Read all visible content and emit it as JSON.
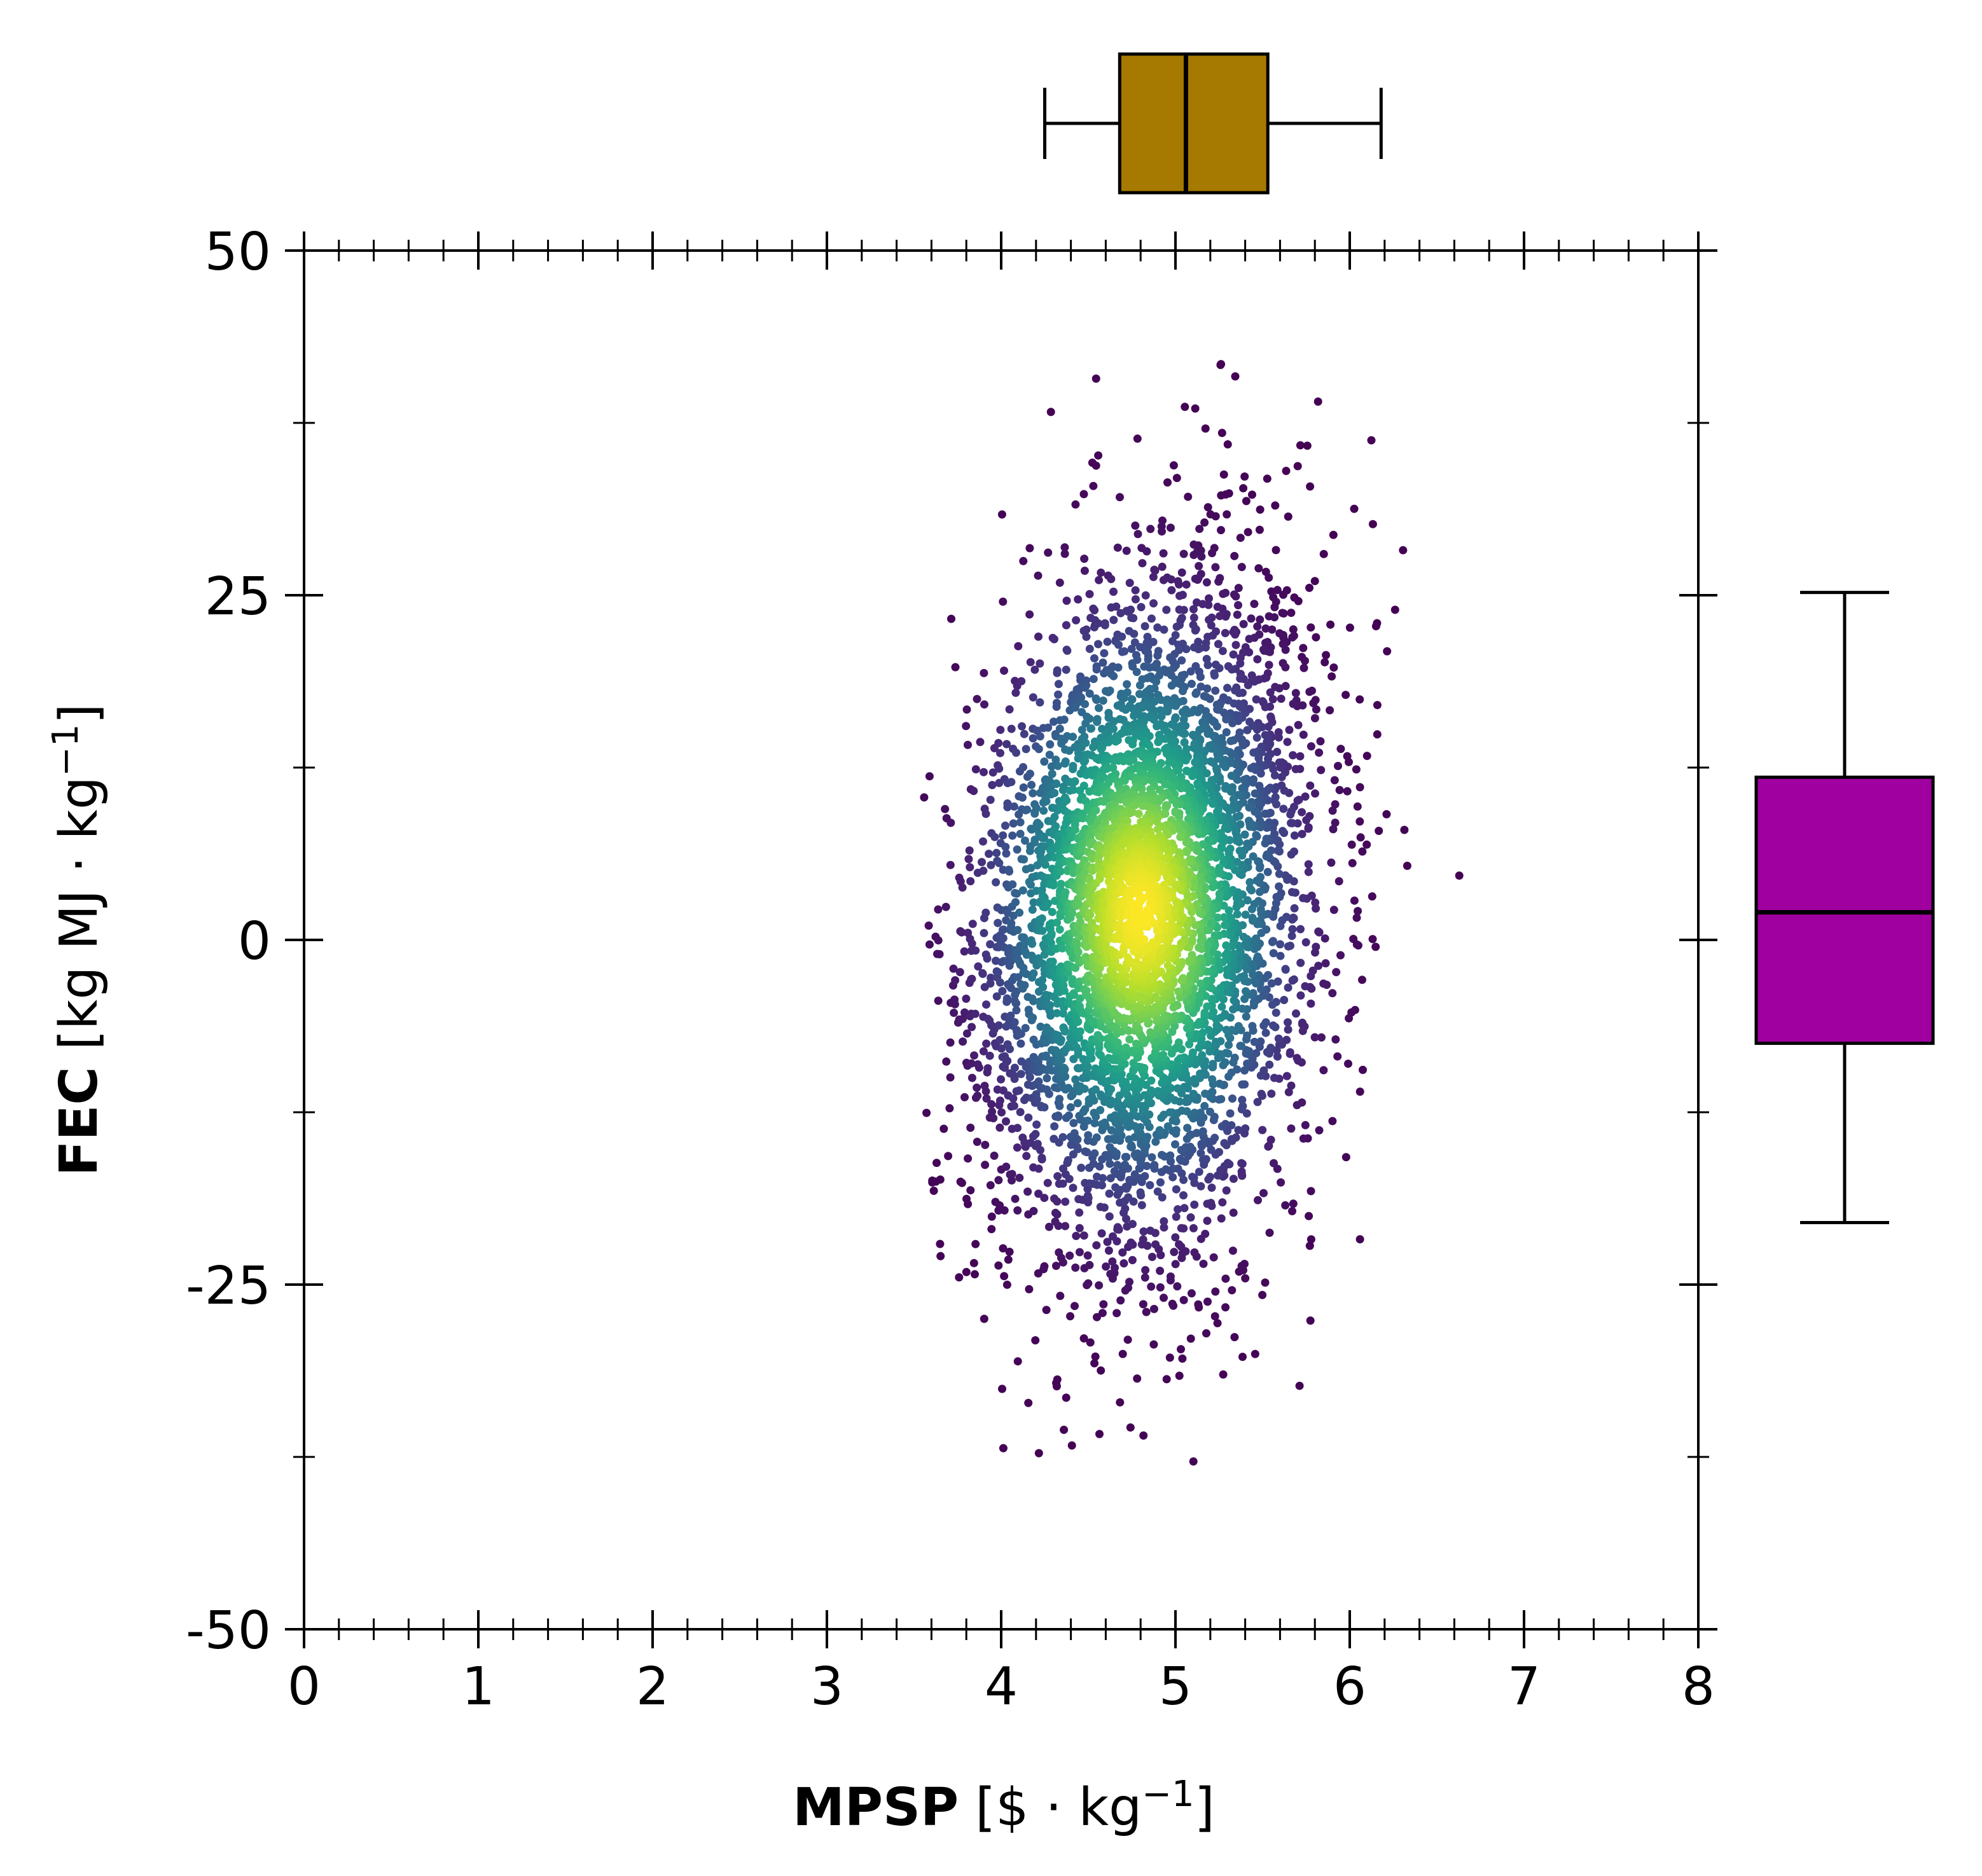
{
  "chart_data": {
    "type": "scatter",
    "title": "",
    "xlabel": {
      "bold": "MPSP",
      "unit_open": " [$ · kg",
      "unit_sup": "−1",
      "unit_close": "]"
    },
    "ylabel": {
      "bold": "FEC",
      "unit_open": " [kg MJ · kg",
      "unit_sup": "−1",
      "unit_close": "]"
    },
    "xlim": [
      0,
      8
    ],
    "ylim": [
      -50,
      50
    ],
    "x_ticks": [
      0,
      1,
      2,
      3,
      4,
      5,
      6,
      7,
      8
    ],
    "x_tick_labels": [
      "0",
      "1",
      "2",
      "3",
      "4",
      "5",
      "6",
      "7",
      "8"
    ],
    "y_ticks": [
      -50,
      -25,
      0,
      25,
      50
    ],
    "y_tick_labels": [
      "-50",
      "-25",
      "0",
      "25",
      "50"
    ],
    "colormap": "viridis",
    "color_encoding": "point density",
    "scatter_summary": {
      "n_points": 5000,
      "x_center": 4.8,
      "y_center": 2,
      "x_sd": 0.5,
      "y_sd": 12,
      "x_range": [
        3.55,
        7.35
      ],
      "y_range": [
        -42,
        44
      ]
    },
    "x_boxplot": {
      "whisker_low": 4.25,
      "q1": 4.68,
      "median": 5.06,
      "q3": 5.53,
      "whisker_high": 6.18,
      "color": "#a67900"
    },
    "y_boxplot": {
      "whisker_low": -20.5,
      "q1": -7.5,
      "median": 2,
      "q3": 11.8,
      "whisker_high": 25.2,
      "color": "#a000a0"
    }
  }
}
